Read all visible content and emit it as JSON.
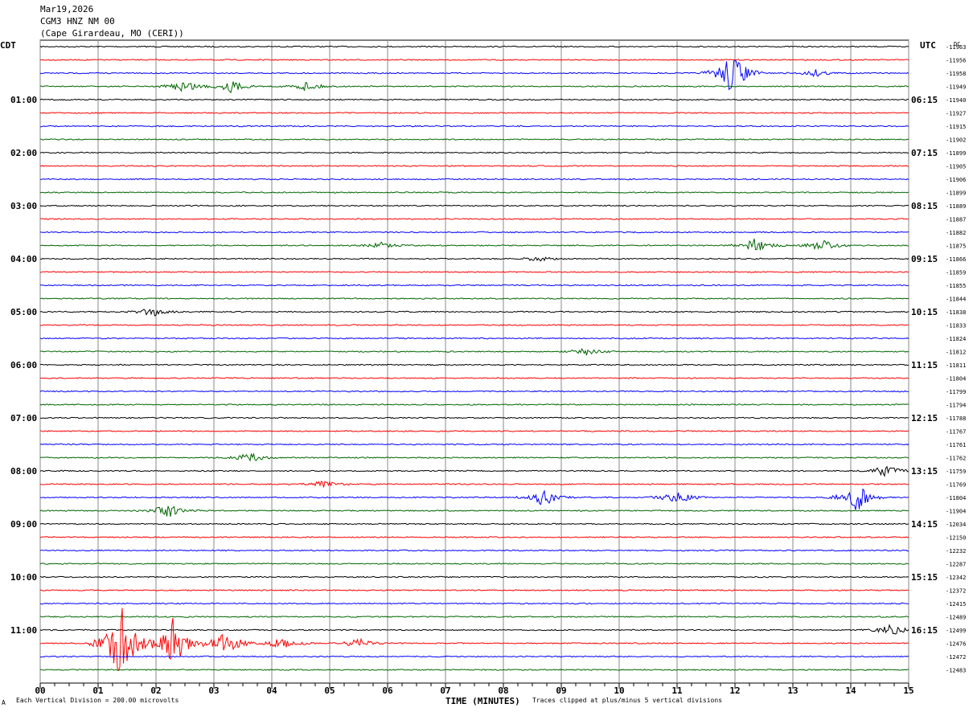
{
  "header": {
    "date": "Mar19,2026",
    "station": "CGM3 HNZ NM 00",
    "location": "(Cape Girardeau, MO (CERI))"
  },
  "left_axis_title": "CDT",
  "right_axis_title": "UTC",
  "dc_title": "DC",
  "footer": {
    "scale_note": "Each Vertical Division = 200.00 microvolts",
    "clip_note": "Traces clipped at plus/minus 5 vertical divisions",
    "corner_mark": "A"
  },
  "chart_data": {
    "type": "line",
    "title": "",
    "xlabel": "TIME (MINUTES)",
    "ylabel": "",
    "xlim": [
      0,
      15
    ],
    "x_ticks": [
      "00",
      "01",
      "02",
      "03",
      "04",
      "05",
      "06",
      "07",
      "08",
      "09",
      "10",
      "11",
      "12",
      "13",
      "14",
      "15"
    ],
    "left_hour_labels": [
      "01:00",
      "02:00",
      "03:00",
      "04:00",
      "05:00",
      "06:00",
      "07:00",
      "08:00",
      "09:00",
      "10:00",
      "11:00"
    ],
    "right_hour_labels": [
      "06:15",
      "07:15",
      "08:15",
      "09:15",
      "10:15",
      "11:15",
      "12:15",
      "13:15",
      "14:15",
      "15:15",
      "16:15"
    ],
    "trace_colors": [
      "#000000",
      "#ff0000",
      "#0000ff",
      "#006600"
    ],
    "dc_offsets": [
      -11963,
      -11956,
      -11958,
      -11949,
      -11940,
      -11927,
      -11915,
      -11902,
      -11899,
      -11905,
      -11906,
      -11899,
      -11889,
      -11887,
      -11882,
      -11875,
      -11866,
      -11859,
      -11855,
      -11844,
      -11838,
      -11833,
      -11824,
      -11812,
      -11811,
      -11804,
      -11799,
      -11794,
      -11788,
      -11767,
      -11761,
      -11762,
      -11759,
      -11769,
      -11804,
      -11904,
      -12034,
      -12150,
      -12232,
      -12287,
      -12342,
      -12372,
      -12415,
      -12489,
      -12499,
      -12476,
      -12472,
      -12483
    ],
    "events": [
      {
        "trace": 3,
        "minute": 2.5,
        "amplitude": 1.2
      },
      {
        "trace": 3,
        "minute": 3.3,
        "amplitude": 1.0
      },
      {
        "trace": 3,
        "minute": 4.6,
        "amplitude": 0.8
      },
      {
        "trace": 2,
        "minute": 11.95,
        "amplitude": 4.0
      },
      {
        "trace": 2,
        "minute": 13.4,
        "amplitude": 0.6
      },
      {
        "trace": 15,
        "minute": 5.9,
        "amplitude": 0.5
      },
      {
        "trace": 15,
        "minute": 12.35,
        "amplitude": 1.2
      },
      {
        "trace": 15,
        "minute": 13.5,
        "amplitude": 1.0
      },
      {
        "trace": 16,
        "minute": 8.6,
        "amplitude": 0.4
      },
      {
        "trace": 20,
        "minute": 1.95,
        "amplitude": 0.8
      },
      {
        "trace": 23,
        "minute": 9.4,
        "amplitude": 0.7
      },
      {
        "trace": 31,
        "minute": 3.6,
        "amplitude": 0.9
      },
      {
        "trace": 32,
        "minute": 14.6,
        "amplitude": 1.0
      },
      {
        "trace": 33,
        "minute": 4.9,
        "amplitude": 0.6
      },
      {
        "trace": 34,
        "minute": 8.7,
        "amplitude": 1.5
      },
      {
        "trace": 34,
        "minute": 11.0,
        "amplitude": 1.2
      },
      {
        "trace": 34,
        "minute": 14.1,
        "amplitude": 2.5
      },
      {
        "trace": 35,
        "minute": 2.2,
        "amplitude": 1.2
      },
      {
        "trace": 44,
        "minute": 14.7,
        "amplitude": 1.0
      },
      {
        "trace": 45,
        "minute": 1.4,
        "amplitude": 8.0
      },
      {
        "trace": 45,
        "minute": 2.3,
        "amplitude": 4.5
      },
      {
        "trace": 45,
        "minute": 3.2,
        "amplitude": 2.5
      },
      {
        "trace": 45,
        "minute": 4.2,
        "amplitude": 1.2
      },
      {
        "trace": 45,
        "minute": 5.5,
        "amplitude": 0.8
      }
    ]
  }
}
